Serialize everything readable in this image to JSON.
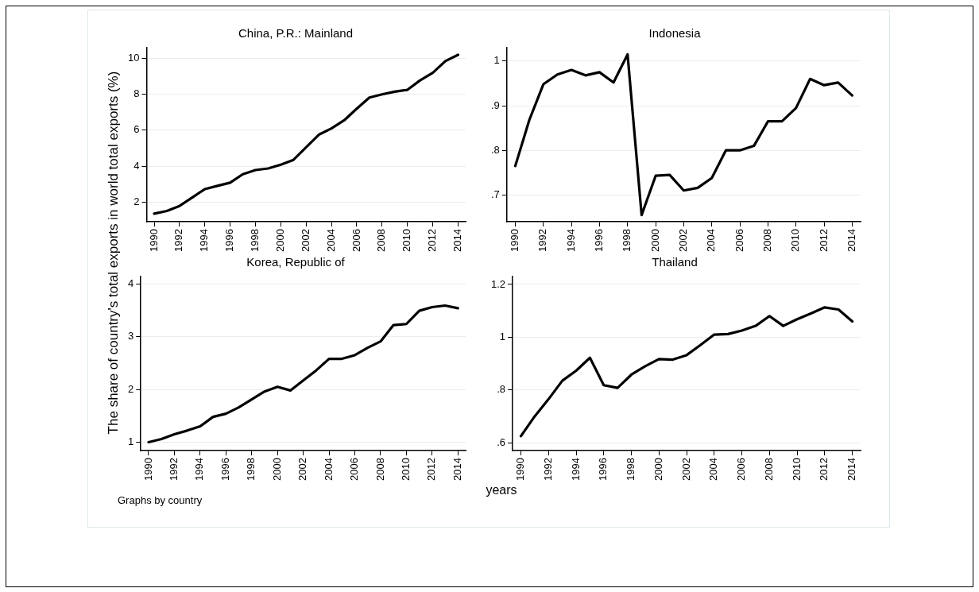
{
  "chart_data": [
    {
      "type": "line",
      "title": "China, P.R.: Mainland",
      "ylabel": "The share of country's total exports in world total exports (%)",
      "x": [
        1990,
        1991,
        1992,
        1993,
        1994,
        1995,
        1996,
        1997,
        1998,
        1999,
        2000,
        2001,
        2002,
        2003,
        2004,
        2005,
        2006,
        2007,
        2008,
        2009,
        2010,
        2011,
        2012,
        2013,
        2014
      ],
      "series": [
        {
          "color": "#000000",
          "values": [
            1.35,
            1.5,
            1.78,
            2.25,
            2.72,
            2.9,
            3.08,
            3.55,
            3.78,
            3.87,
            4.08,
            4.35,
            5.05,
            5.75,
            6.1,
            6.55,
            7.2,
            7.82,
            8.0,
            8.15,
            8.25,
            8.78,
            9.2,
            9.85,
            10.2
          ]
        }
      ],
      "xlim": [
        1989.4,
        2014.6
      ],
      "xticks": [
        1990,
        1992,
        1994,
        1996,
        1998,
        2000,
        2002,
        2004,
        2006,
        2008,
        2010,
        2012,
        2014
      ],
      "ylim": [
        0.9,
        10.6
      ],
      "yticks": [
        2,
        4,
        6,
        8,
        10
      ],
      "grid": "y",
      "legend": false,
      "marker": "none",
      "line_style": "solid"
    },
    {
      "type": "line",
      "title": "Indonesia",
      "x": [
        1990,
        1991,
        1992,
        1993,
        1994,
        1995,
        1996,
        1997,
        1998,
        1999,
        2000,
        2001,
        2002,
        2003,
        2004,
        2005,
        2006,
        2007,
        2008,
        2009,
        2010,
        2011,
        2012,
        2013,
        2014
      ],
      "series": [
        {
          "color": "#000000",
          "values": [
            0.765,
            0.868,
            0.948,
            0.97,
            0.98,
            0.968,
            0.975,
            0.952,
            1.015,
            0.655,
            0.743,
            0.745,
            0.71,
            0.716,
            0.738,
            0.8,
            0.8,
            0.81,
            0.865,
            0.865,
            0.895,
            0.96,
            0.946,
            0.952,
            0.923
          ]
        }
      ],
      "xlim": [
        1989.4,
        2014.6
      ],
      "xticks": [
        1990,
        1992,
        1994,
        1996,
        1998,
        2000,
        2002,
        2004,
        2006,
        2008,
        2010,
        2012,
        2014
      ],
      "ylim": [
        0.64,
        1.03
      ],
      "yticks": [
        {
          "value": 0.7,
          "label": ".7"
        },
        {
          "value": 0.8,
          "label": ".8"
        },
        {
          "value": 0.9,
          "label": ".9"
        },
        1
      ],
      "grid": "y",
      "legend": false,
      "marker": "none",
      "line_style": "solid"
    },
    {
      "type": "line",
      "title": "Korea, Republic of",
      "annotations": [
        "Graphs by country"
      ],
      "x": [
        1990,
        1991,
        1992,
        1993,
        1994,
        1995,
        1996,
        1997,
        1998,
        1999,
        2000,
        2001,
        2002,
        2003,
        2004,
        2005,
        2006,
        2007,
        2008,
        2009,
        2010,
        2011,
        2012,
        2013,
        2014
      ],
      "series": [
        {
          "color": "#000000",
          "values": [
            1.0,
            1.06,
            1.15,
            1.22,
            1.3,
            1.48,
            1.54,
            1.66,
            1.81,
            1.96,
            2.05,
            1.98,
            2.17,
            2.36,
            2.58,
            2.58,
            2.65,
            2.79,
            2.91,
            3.22,
            3.24,
            3.49,
            3.56,
            3.59,
            3.54
          ]
        }
      ],
      "xlim": [
        1989.4,
        2014.6
      ],
      "xticks": [
        1990,
        1992,
        1994,
        1996,
        1998,
        2000,
        2002,
        2004,
        2006,
        2008,
        2010,
        2012,
        2014
      ],
      "ylim": [
        0.84,
        4.14
      ],
      "yticks": [
        1,
        2,
        3,
        4
      ],
      "grid": "y",
      "legend": false,
      "marker": "none",
      "line_style": "solid"
    },
    {
      "type": "line",
      "title": "Thailand",
      "xlabel": "years",
      "x": [
        1990,
        1991,
        1992,
        1993,
        1994,
        1995,
        1996,
        1997,
        1998,
        1999,
        2000,
        2001,
        2002,
        2003,
        2004,
        2005,
        2006,
        2007,
        2008,
        2009,
        2010,
        2011,
        2012,
        2013,
        2014
      ],
      "series": [
        {
          "color": "#000000",
          "values": [
            0.625,
            0.7,
            0.765,
            0.835,
            0.873,
            0.922,
            0.818,
            0.808,
            0.858,
            0.89,
            0.917,
            0.915,
            0.932,
            0.97,
            1.01,
            1.012,
            1.025,
            1.043,
            1.08,
            1.043,
            1.068,
            1.09,
            1.113,
            1.105,
            1.06
          ]
        }
      ],
      "xlim": [
        1989.4,
        2014.6
      ],
      "xticks": [
        1990,
        1992,
        1994,
        1996,
        1998,
        2000,
        2002,
        2004,
        2006,
        2008,
        2010,
        2012,
        2014
      ],
      "ylim": [
        0.57,
        1.23
      ],
      "yticks": [
        {
          "value": 0.6,
          "label": ".6"
        },
        {
          "value": 0.8,
          "label": ".8"
        },
        1,
        {
          "value": 1.2,
          "label": "1.2"
        }
      ],
      "grid": "y",
      "legend": false,
      "marker": "none",
      "line_style": "solid"
    }
  ]
}
